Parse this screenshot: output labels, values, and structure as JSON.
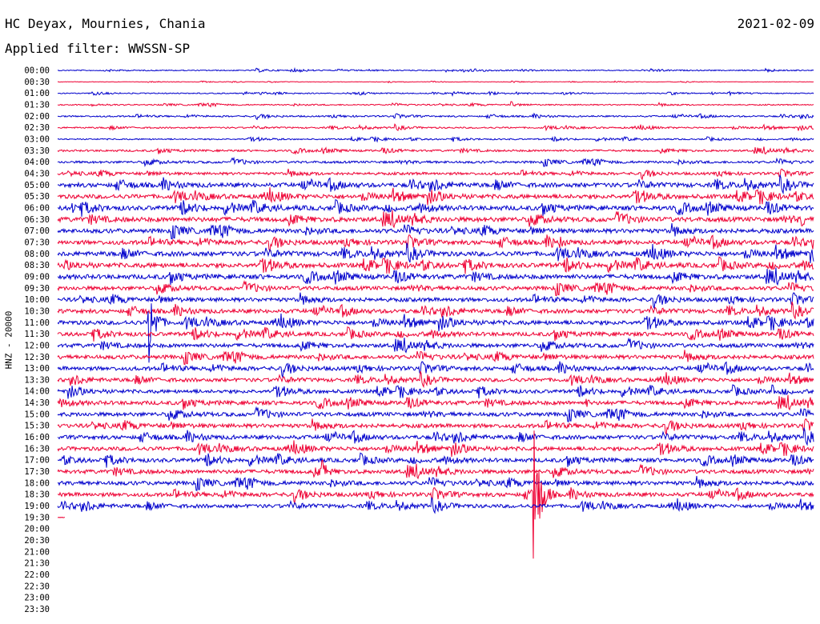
{
  "header": {
    "station": "HC Deyax, Mournies, Chania",
    "date": "2021-02-09",
    "filter": "Applied filter: WWSSN-SP"
  },
  "chart_data": {
    "type": "line",
    "title": "",
    "ylabel": "HNZ - 20000",
    "row_labels": [
      "00:00",
      "00:30",
      "01:00",
      "01:30",
      "02:00",
      "02:30",
      "03:00",
      "03:30",
      "04:00",
      "04:30",
      "05:00",
      "05:30",
      "06:00",
      "06:30",
      "07:00",
      "07:30",
      "08:00",
      "08:30",
      "09:00",
      "09:30",
      "10:00",
      "10:30",
      "11:00",
      "11:30",
      "12:00",
      "12:30",
      "13:00",
      "13:30",
      "14:00",
      "14:30",
      "15:00",
      "15:30",
      "16:00",
      "16:30",
      "17:00",
      "17:30",
      "18:00",
      "18:30",
      "19:00",
      "19:30",
      "20:00",
      "20:30",
      "21:00",
      "21:30",
      "22:00",
      "22:30",
      "23:00",
      "23:30"
    ],
    "series_colors": [
      "#0000cc",
      "#ee0033"
    ],
    "trace_fraction": [
      1,
      1,
      1,
      1,
      1,
      1,
      1,
      1,
      1,
      1,
      1,
      1,
      1,
      1,
      1,
      1,
      1,
      1,
      1,
      1,
      1,
      1,
      1,
      1,
      1,
      1,
      1,
      1,
      1,
      1,
      1,
      1,
      1,
      1,
      1,
      1,
      1,
      1,
      1,
      0.01,
      0,
      0,
      0,
      0,
      0,
      0,
      0,
      0
    ],
    "noise_level": [
      0.6,
      0.3,
      0.6,
      0.7,
      0.9,
      0.9,
      0.8,
      1.2,
      1.4,
      1.6,
      2.6,
      2.6,
      2.8,
      2.8,
      2.6,
      2.6,
      2.8,
      2.8,
      2.8,
      2.4,
      2.4,
      2.4,
      2.6,
      2.4,
      2.4,
      2.4,
      2.4,
      2.2,
      2.2,
      2.4,
      2.4,
      2.4,
      2.4,
      2.4,
      2.4,
      2.4,
      2.4,
      2.4,
      2.2,
      0.4,
      0,
      0,
      0,
      0,
      0,
      0,
      0,
      0
    ],
    "events": [
      {
        "row": 37,
        "t": 0.63,
        "up": 80,
        "down": 80
      },
      {
        "row": 22,
        "t": 0.12,
        "up": 14,
        "down": 50
      },
      {
        "row": 35,
        "t": 0.35,
        "up": 14,
        "down": 14
      },
      {
        "row": 28,
        "t": 0.945,
        "up": 8,
        "down": 8
      },
      {
        "row": 15,
        "t": 0.665,
        "up": 7,
        "down": 7
      },
      {
        "row": 13,
        "t": 0.985,
        "up": 8,
        "down": 8
      },
      {
        "row": 12,
        "t": 0.02,
        "up": 6,
        "down": 6
      },
      {
        "row": 29,
        "t": 0.7,
        "up": 5,
        "down": 5
      },
      {
        "row": 3,
        "t": 0.6,
        "up": 4,
        "down": 3
      }
    ]
  }
}
